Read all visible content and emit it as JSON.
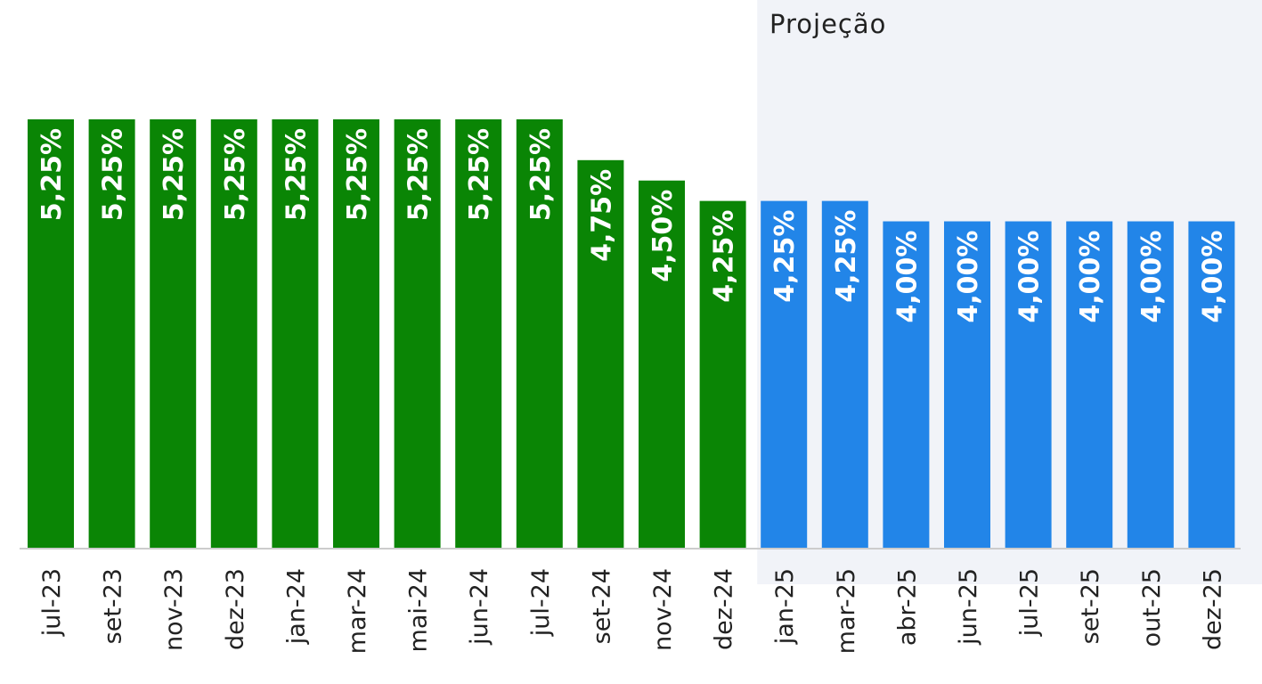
{
  "chart_data": {
    "type": "bar",
    "title": "",
    "xlabel": "",
    "ylabel": "",
    "ylim": [
      0,
      6.2
    ],
    "grid": false,
    "legend": "none",
    "projection_label": "Projeção",
    "projection_start_index": 12,
    "categories": [
      "jul-23",
      "set-23",
      "nov-23",
      "dez-23",
      "jan-24",
      "mar-24",
      "mai-24",
      "jun-24",
      "jul-24",
      "set-24",
      "nov-24",
      "dez-24",
      "jan-25",
      "mar-25",
      "abr-25",
      "jun-25",
      "jul-25",
      "set-25",
      "out-25",
      "dez-25"
    ],
    "values": [
      5.25,
      5.25,
      5.25,
      5.25,
      5.25,
      5.25,
      5.25,
      5.25,
      5.25,
      4.75,
      4.5,
      4.25,
      4.25,
      4.25,
      4.0,
      4.0,
      4.0,
      4.0,
      4.0,
      4.0
    ],
    "data_labels": [
      "5,25%",
      "5,25%",
      "5,25%",
      "5,25%",
      "5,25%",
      "5,25%",
      "5,25%",
      "5,25%",
      "5,25%",
      "4,75%",
      "4,50%",
      "4,25%",
      "4,25%",
      "4,25%",
      "4,00%",
      "4,00%",
      "4,00%",
      "4,00%",
      "4,00%",
      "4,00%"
    ],
    "colors": {
      "actual": "#0a8505",
      "projection": "#2285e8",
      "projection_bg": "#f1f3f8",
      "axis": "#cccccc",
      "label_text": "#ffffff",
      "tick_text": "#222222"
    }
  }
}
